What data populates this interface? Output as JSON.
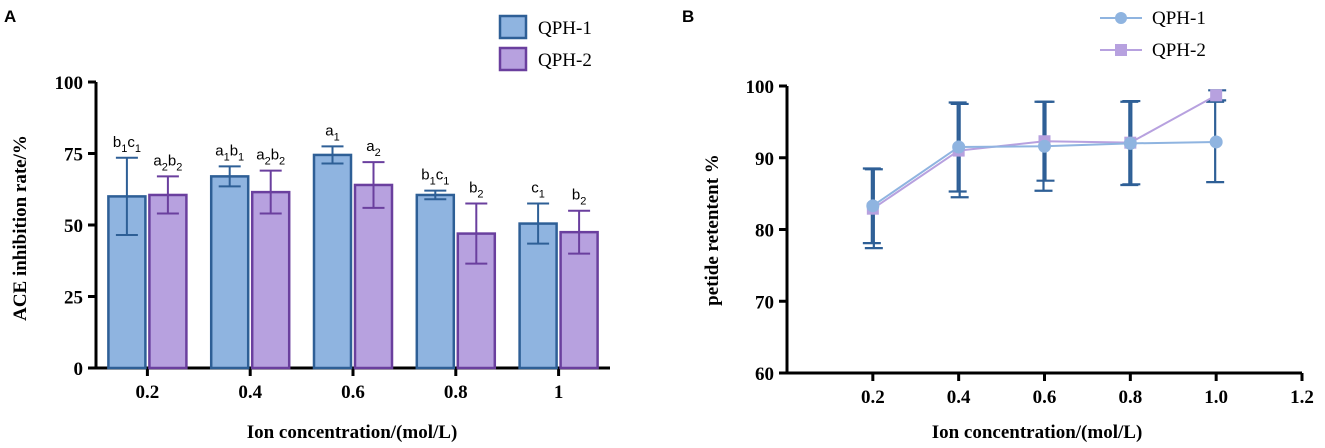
{
  "chart_data": [
    {
      "panel": "A",
      "type": "bar",
      "ylabel": "ACE inhibition rate/%",
      "xlabel": "Ion concentration/(mol/L)",
      "categories": [
        "0.2",
        "0.4",
        "0.6",
        "0.8",
        "1"
      ],
      "ylim": [
        0,
        100
      ],
      "yticks": [
        "0",
        "25",
        "50",
        "75",
        "100"
      ],
      "series": [
        {
          "name": "QPH-1",
          "fill": "#8fb4e0",
          "stroke": "#2e5f96",
          "values": [
            60,
            67,
            74.5,
            60.5,
            50.5
          ],
          "errors": [
            13.5,
            3.5,
            3,
            1.5,
            7
          ],
          "labels": [
            [
              "b",
              "1",
              "c",
              "1"
            ],
            [
              "a",
              "1",
              "b",
              "1"
            ],
            [
              "a",
              "1"
            ],
            [
              "b",
              "1",
              "c",
              "1"
            ],
            [
              "c",
              "1"
            ]
          ]
        },
        {
          "name": "QPH-2",
          "fill": "#b7a1df",
          "stroke": "#6a3f9e",
          "values": [
            60.5,
            61.5,
            64,
            47,
            47.5
          ],
          "errors": [
            6.5,
            7.5,
            8,
            10.5,
            7.5
          ],
          "labels": [
            [
              "a",
              "2",
              "b",
              "2"
            ],
            [
              "a",
              "2",
              "b",
              "2"
            ],
            [
              "a",
              "2"
            ],
            [
              "b",
              "2"
            ],
            [
              "b",
              "2"
            ]
          ]
        }
      ]
    },
    {
      "panel": "B",
      "type": "line",
      "ylabel": "petide retentent  %",
      "xlabel": "Ion concentration/(mol/L)",
      "x": [
        0.2,
        0.4,
        0.6,
        0.8,
        1.0
      ],
      "xlim": [
        0,
        1.2
      ],
      "xticks": [
        "0.2",
        "0.4",
        "0.6",
        "0.8",
        "1.0",
        "1.2"
      ],
      "ylim": [
        60,
        100
      ],
      "yticks": [
        "60",
        "70",
        "80",
        "90",
        "100"
      ],
      "series": [
        {
          "name": "QPH-1",
          "color": "#8fb4e0",
          "marker": "circle",
          "values": [
            83.3,
            91.5,
            91.6,
            92.0,
            92.2
          ],
          "errors": [
            5.2,
            6.2,
            6.2,
            5.8,
            5.6
          ]
        },
        {
          "name": "QPH-2",
          "color": "#b7a1df",
          "marker": "square",
          "values": [
            82.9,
            91.0,
            92.3,
            92.1,
            98.7
          ],
          "errors": [
            5.5,
            6.5,
            5.5,
            5.8,
            0.7
          ]
        }
      ],
      "errorbar_color": "#2e5f96"
    }
  ]
}
